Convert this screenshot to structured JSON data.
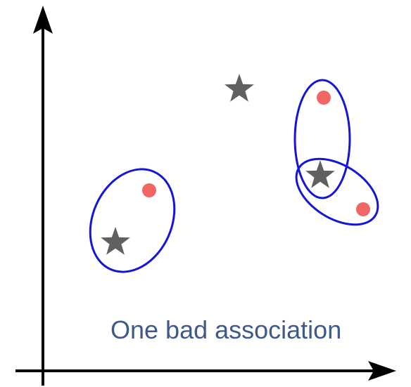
{
  "caption": "One bad association",
  "colors": {
    "axis": "#000000",
    "star": "#606060",
    "dot": "#f26666",
    "ellipse": "#1515d8",
    "caption": "#3d5a8a"
  },
  "icons": {
    "star": "star-icon",
    "dot": "circle-dot-icon",
    "axis": "arrow-axis-icon"
  }
}
